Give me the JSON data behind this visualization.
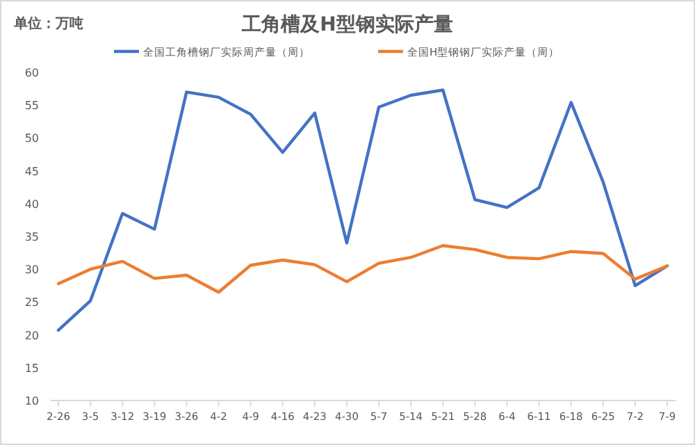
{
  "chart_data": {
    "type": "line",
    "title": "工角槽及H型钢实际产量",
    "annotations": [
      "单位：万吨"
    ],
    "categories": [
      "2-26",
      "3-5",
      "3-12",
      "3-19",
      "3-26",
      "4-2",
      "4-9",
      "4-16",
      "4-23",
      "4-30",
      "5-7",
      "5-14",
      "5-21",
      "5-28",
      "6-4",
      "6-11",
      "6-18",
      "6-25",
      "7-2",
      "7-9"
    ],
    "series": [
      {
        "name": "全国工角槽钢厂实际周产量（周）",
        "color": "#4472c4",
        "values": [
          20.7,
          25.2,
          38.5,
          36.1,
          57.0,
          56.2,
          53.6,
          47.8,
          53.8,
          34.0,
          54.7,
          56.5,
          57.3,
          40.6,
          39.4,
          42.4,
          55.4,
          43.3,
          27.5,
          30.5
        ]
      },
      {
        "name": "全国H型钢钢厂实际产量（周）",
        "color": "#ed7d31",
        "values": [
          27.8,
          30.0,
          31.2,
          28.6,
          29.1,
          26.5,
          30.6,
          31.4,
          30.7,
          28.1,
          30.9,
          31.8,
          33.6,
          33.0,
          31.8,
          31.6,
          32.7,
          32.4,
          28.5,
          30.5
        ]
      }
    ],
    "ylim": [
      10,
      60
    ],
    "yticks": [
      10,
      15,
      20,
      25,
      30,
      35,
      40,
      45,
      50,
      55,
      60
    ],
    "grid": false,
    "legend": "top",
    "marker": "none",
    "line_style": "solid"
  }
}
